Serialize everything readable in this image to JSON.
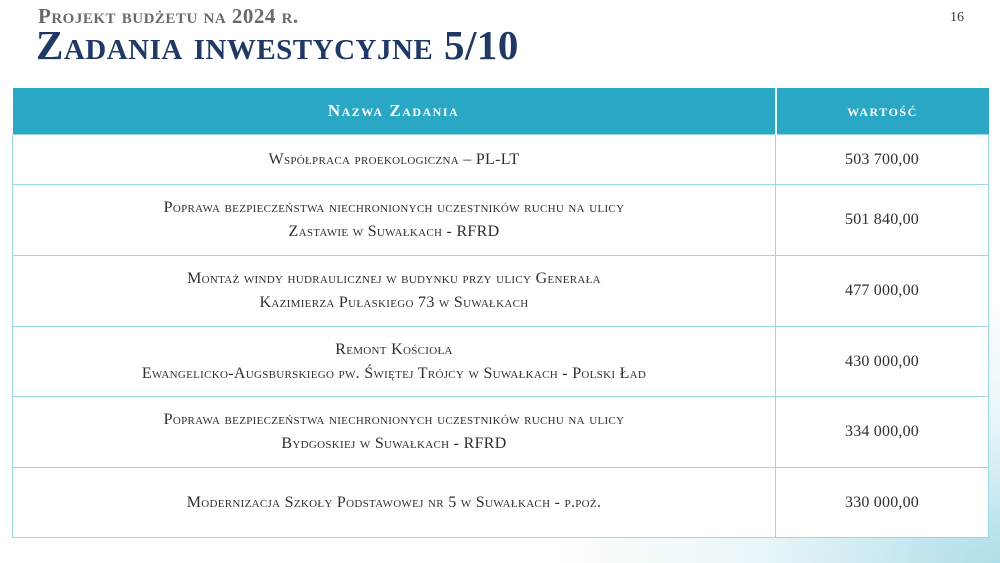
{
  "header": {
    "kicker": "Projekt budżetu na 2024 r.",
    "title": "Zadania inwestycyjne 5/10",
    "page_number": "16"
  },
  "table": {
    "columns": [
      {
        "label": "Nazwa Zadania"
      },
      {
        "label": "wartość"
      }
    ],
    "rows": [
      {
        "name": "Współpraca proekologiczna – PL-LT",
        "value": "503 700,00"
      },
      {
        "name": "Poprawa bezpieczeństwa niechronionych uczestników ruchu na ulicy\nZastawie w Suwałkach - RFRD",
        "value": "501 840,00"
      },
      {
        "name": "Montaż windy hudraulicznej w budynku przy ulicy Generała\nKazimierza Pułaskiego 73 w Suwałkach",
        "value": "477 000,00"
      },
      {
        "name": "Remont Kościoła\nEwangelicko-Augsburskiego pw. Świętej Trójcy w Suwałkach - Polski Ład",
        "value": "430 000,00"
      },
      {
        "name": "Poprawa bezpieczeństwa niechronionych uczestników ruchu na ulicy\nBydgoskiej w Suwałkach - RFRD",
        "value": "334 000,00"
      },
      {
        "name": "Modernizacja Szkoły Podstawowej nr 5 w Suwałkach - p.poż.",
        "value": "330 000,00"
      }
    ]
  },
  "colors": {
    "accent_teal": "#2BA7C6",
    "row_border": "#9AD7E2",
    "title_navy": "#1F3864",
    "kicker_gray": "#6A6A6A",
    "corner_gradient_teal": "#A0D8E5"
  }
}
